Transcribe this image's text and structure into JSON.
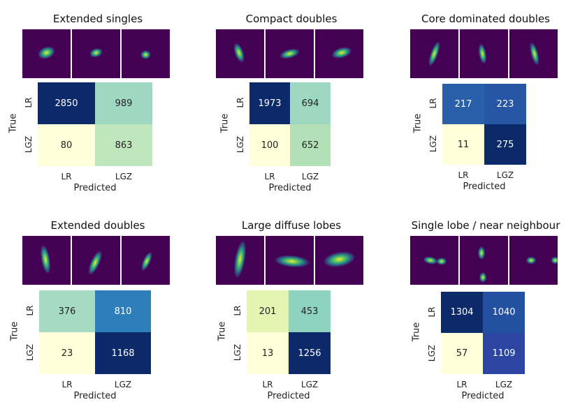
{
  "chart_data": [
    {
      "type": "heatmap",
      "title": "Extended singles",
      "row_labels": [
        "LR",
        "LGZ"
      ],
      "col_labels": [
        "LR",
        "LGZ"
      ],
      "values": [
        [
          2850,
          989
        ],
        [
          80,
          863
        ]
      ],
      "cell_colors": [
        [
          "#0c2a6a",
          "#9fd8c2"
        ],
        [
          "#ffffd9",
          "#c0e6bd"
        ]
      ],
      "text_colors": [
        [
          "#ffffff",
          "#222222"
        ],
        [
          "#222222",
          "#222222"
        ]
      ],
      "ylabel": "True",
      "xlabel": "Predicted",
      "thumb_blobs": [
        [
          {
            "cx": 50,
            "cy": 48,
            "rx": 12,
            "ry": 8,
            "rot": -20
          }
        ],
        [
          {
            "cx": 50,
            "cy": 48,
            "rx": 9,
            "ry": 6,
            "rot": -15
          }
        ],
        [
          {
            "cx": 50,
            "cy": 52,
            "rx": 7,
            "ry": 6,
            "rot": 0
          }
        ]
      ]
    },
    {
      "type": "heatmap",
      "title": "Compact doubles",
      "row_labels": [
        "LR",
        "LGZ"
      ],
      "col_labels": [
        "LR",
        "LGZ"
      ],
      "values": [
        [
          1973,
          694
        ],
        [
          100,
          652
        ]
      ],
      "cell_colors": [
        [
          "#0c2a6a",
          "#9fd8c2"
        ],
        [
          "#ffffd9",
          "#b2e1b8"
        ]
      ],
      "text_colors": [
        [
          "#ffffff",
          "#222222"
        ],
        [
          "#222222",
          "#222222"
        ]
      ],
      "ylabel": "True",
      "xlabel": "Predicted",
      "thumb_blobs": [
        [
          {
            "cx": 48,
            "cy": 48,
            "rx": 6,
            "ry": 14,
            "rot": -20
          }
        ],
        [
          {
            "cx": 50,
            "cy": 50,
            "rx": 14,
            "ry": 6,
            "rot": -15
          }
        ],
        [
          {
            "cx": 55,
            "cy": 48,
            "rx": 14,
            "ry": 7,
            "rot": -15
          }
        ]
      ]
    },
    {
      "type": "heatmap",
      "title": "Core dominated doubles",
      "row_labels": [
        "LR",
        "LGZ"
      ],
      "col_labels": [
        "LR",
        "LGZ"
      ],
      "values": [
        [
          217,
          223
        ],
        [
          11,
          275
        ]
      ],
      "cell_colors": [
        [
          "#2a5faa",
          "#2656a5"
        ],
        [
          "#ffffd9",
          "#0c2a6a"
        ]
      ],
      "text_colors": [
        [
          "#ffffff",
          "#ffffff"
        ],
        [
          "#222222",
          "#ffffff"
        ]
      ],
      "ylabel": "True",
      "xlabel": "Predicted",
      "thumb_blobs": [
        [
          {
            "cx": 50,
            "cy": 50,
            "rx": 5,
            "ry": 18,
            "rot": 20
          }
        ],
        [
          {
            "cx": 47,
            "cy": 50,
            "rx": 5,
            "ry": 14,
            "rot": -10
          }
        ],
        [
          {
            "cx": 52,
            "cy": 50,
            "rx": 5,
            "ry": 16,
            "rot": -15
          }
        ]
      ]
    },
    {
      "type": "heatmap",
      "title": "Extended doubles",
      "row_labels": [
        "LR",
        "LGZ"
      ],
      "col_labels": [
        "LR",
        "LGZ"
      ],
      "values": [
        [
          376,
          810
        ],
        [
          23,
          1168
        ]
      ],
      "cell_colors": [
        [
          "#a5dbc3",
          "#2c7fb8"
        ],
        [
          "#ffffd9",
          "#0c2a6a"
        ]
      ],
      "text_colors": [
        [
          "#222222",
          "#ffffff"
        ],
        [
          "#222222",
          "#ffffff"
        ]
      ],
      "ylabel": "True",
      "xlabel": "Predicted",
      "thumb_blobs": [
        [
          {
            "cx": 48,
            "cy": 48,
            "rx": 6,
            "ry": 20,
            "rot": -10
          }
        ],
        [
          {
            "cx": 48,
            "cy": 55,
            "rx": 6,
            "ry": 18,
            "rot": 25
          }
        ],
        [
          {
            "cx": 52,
            "cy": 52,
            "rx": 5,
            "ry": 14,
            "rot": 25
          }
        ]
      ]
    },
    {
      "type": "heatmap",
      "title": "Large diffuse lobes",
      "row_labels": [
        "LR",
        "LGZ"
      ],
      "col_labels": [
        "LR",
        "LGZ"
      ],
      "values": [
        [
          201,
          453
        ],
        [
          13,
          1256
        ]
      ],
      "cell_colors": [
        [
          "#e4f4b1",
          "#8dd3c0"
        ],
        [
          "#ffffd9",
          "#0c2a6a"
        ]
      ],
      "text_colors": [
        [
          "#222222",
          "#222222"
        ],
        [
          "#222222",
          "#ffffff"
        ]
      ],
      "ylabel": "True",
      "xlabel": "Predicted",
      "thumb_blobs": [
        [
          {
            "cx": 50,
            "cy": 48,
            "rx": 7,
            "ry": 26,
            "rot": 10
          }
        ],
        [
          {
            "cx": 55,
            "cy": 52,
            "rx": 24,
            "ry": 8,
            "rot": 5
          }
        ],
        [
          {
            "cx": 50,
            "cy": 48,
            "rx": 22,
            "ry": 10,
            "rot": -10
          }
        ]
      ]
    },
    {
      "type": "heatmap",
      "title": "Single lobe / near neighbour",
      "row_labels": [
        "LR",
        "LGZ"
      ],
      "col_labels": [
        "LR",
        "LGZ"
      ],
      "values": [
        [
          1304,
          1040
        ],
        [
          57,
          1109
        ]
      ],
      "cell_colors": [
        [
          "#0c2a6a",
          "#2450a2"
        ],
        [
          "#ffffd9",
          "#2b45a0"
        ]
      ],
      "text_colors": [
        [
          "#ffffff",
          "#ffffff"
        ],
        [
          "#222222",
          "#ffffff"
        ]
      ],
      "ylabel": "True",
      "xlabel": "Predicted",
      "thumb_blobs": [
        [
          {
            "cx": 42,
            "cy": 50,
            "rx": 10,
            "ry": 5,
            "rot": 10
          },
          {
            "cx": 65,
            "cy": 52,
            "rx": 7,
            "ry": 5,
            "rot": 0
          }
        ],
        [
          {
            "cx": 45,
            "cy": 35,
            "rx": 5,
            "ry": 9,
            "rot": 0
          },
          {
            "cx": 48,
            "cy": 85,
            "rx": 5,
            "ry": 7,
            "rot": 0
          }
        ],
        [
          {
            "cx": 45,
            "cy": 50,
            "rx": 7,
            "ry": 5,
            "rot": 0
          },
          {
            "cx": 95,
            "cy": 50,
            "rx": 6,
            "ry": 5,
            "rot": 0
          }
        ]
      ]
    }
  ]
}
